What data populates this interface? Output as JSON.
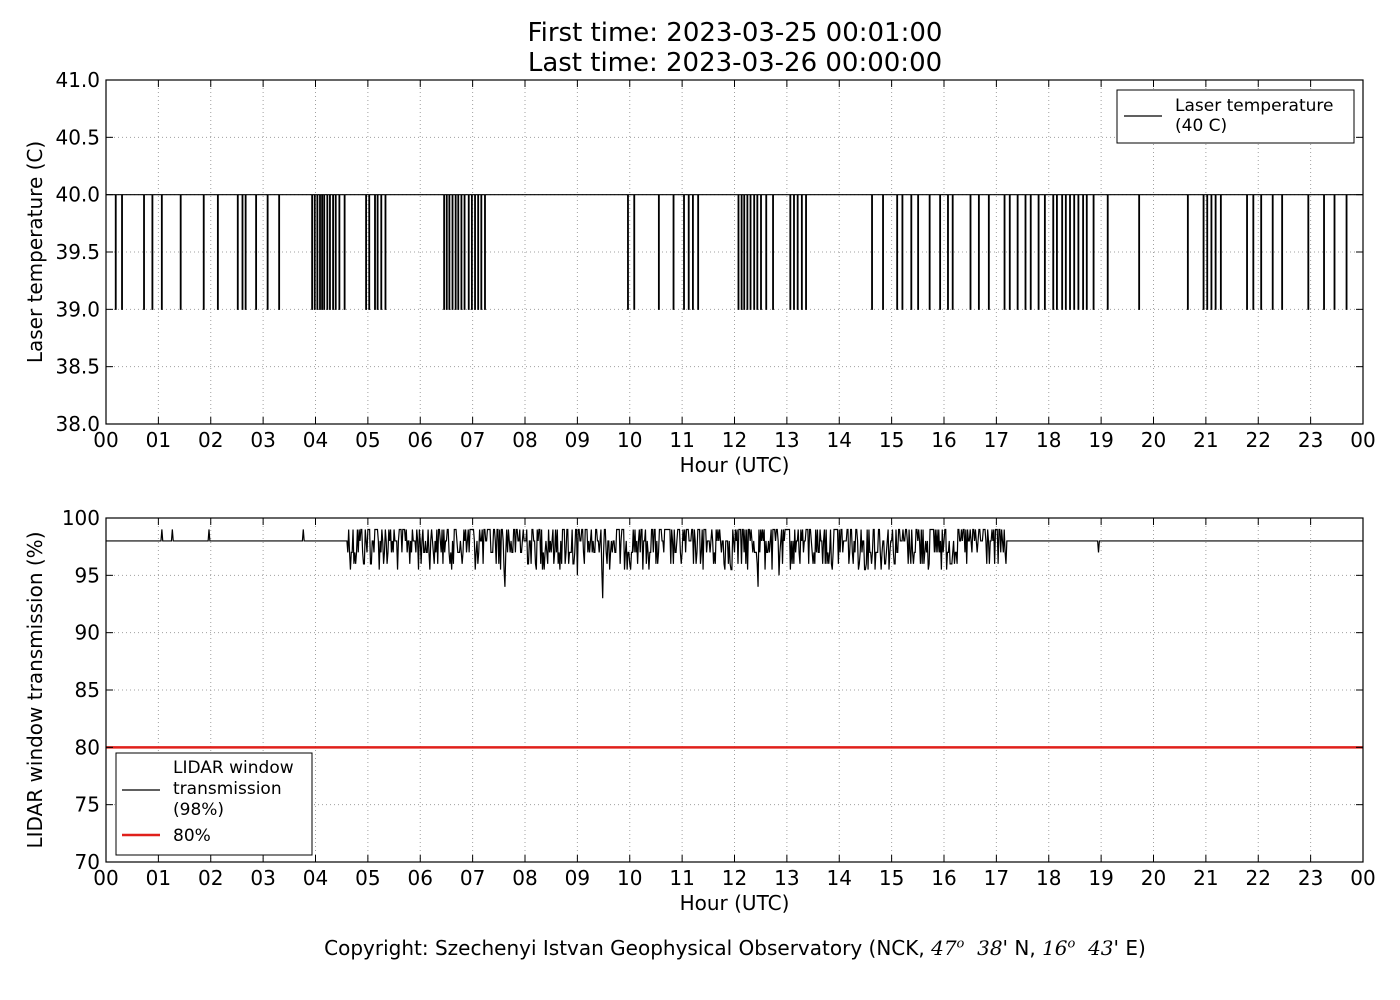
{
  "header": {
    "first_time": "First time: 2023-03-25 00:01:00",
    "last_time": "Last time: 2023-03-26 00:00:00"
  },
  "footer": {
    "prefix": "Copyright: Szechenyi Istvan Geophysical Observatory (NCK, ",
    "lat_deg": "47",
    "lat_min": "38",
    "lat_dir": "' N, ",
    "lon_deg": "16",
    "lon_min": "43",
    "lon_dir": "' E)"
  },
  "colors": {
    "line": "#000000",
    "threshold": "#e0201b",
    "grid": "#a0a0a0"
  },
  "chart_data": [
    {
      "type": "line",
      "xlabel": "Hour (UTC)",
      "ylabel": "Laser temperature (C)",
      "xlim": [
        0,
        24
      ],
      "ylim": [
        38.0,
        41.0
      ],
      "xticks": [
        "00",
        "01",
        "02",
        "03",
        "04",
        "05",
        "06",
        "07",
        "08",
        "09",
        "10",
        "11",
        "12",
        "13",
        "14",
        "15",
        "16",
        "17",
        "18",
        "19",
        "20",
        "21",
        "22",
        "23",
        "00"
      ],
      "yticks": [
        "38.0",
        "38.5",
        "39.0",
        "39.5",
        "40.0",
        "40.5",
        "41.0"
      ],
      "grid": true,
      "legend": {
        "placement": "top-right",
        "entries": [
          "Laser temperature\n(40 C)"
        ]
      },
      "series": [
        {
          "name": "Laser temperature\n(40 C)",
          "baseline": 40.0,
          "dip_value": 39.0,
          "dips_hours": [
            0.18,
            0.3,
            0.72,
            0.88,
            1.06,
            1.42,
            1.86,
            2.13,
            2.51,
            2.6,
            2.66,
            2.86,
            3.08,
            3.3,
            3.93,
            3.98,
            4.03,
            4.08,
            4.12,
            4.16,
            4.22,
            4.27,
            4.33,
            4.38,
            4.45,
            4.55,
            4.96,
            5.02,
            5.13,
            5.18,
            5.25,
            5.33,
            6.45,
            6.5,
            6.55,
            6.61,
            6.67,
            6.72,
            6.78,
            6.84,
            6.92,
            6.98,
            7.04,
            7.1,
            7.16,
            7.23,
            9.96,
            10.08,
            10.55,
            10.83,
            11.03,
            11.12,
            11.2,
            11.3,
            12.07,
            12.13,
            12.18,
            12.24,
            12.3,
            12.37,
            12.43,
            12.5,
            12.6,
            12.73,
            13.06,
            13.13,
            13.2,
            13.28,
            13.36,
            14.62,
            14.83,
            15.1,
            15.2,
            15.37,
            15.5,
            15.72,
            15.92,
            16.07,
            16.16,
            16.5,
            16.66,
            16.85,
            17.15,
            17.25,
            17.4,
            17.55,
            17.65,
            17.8,
            17.92,
            18.08,
            18.15,
            18.25,
            18.32,
            18.4,
            18.48,
            18.56,
            18.65,
            18.72,
            18.85,
            19.12,
            19.72,
            20.65,
            20.95,
            21.02,
            21.1,
            21.18,
            21.28,
            21.78,
            21.9,
            22.05,
            22.27,
            22.45,
            22.95,
            23.25,
            23.45,
            23.68
          ]
        }
      ]
    },
    {
      "type": "line",
      "xlabel": "Hour (UTC)",
      "ylabel": "LIDAR window transmission (%)",
      "xlim": [
        0,
        24
      ],
      "ylim": [
        70,
        100
      ],
      "xticks": [
        "00",
        "01",
        "02",
        "03",
        "04",
        "05",
        "06",
        "07",
        "08",
        "09",
        "10",
        "11",
        "12",
        "13",
        "14",
        "15",
        "16",
        "17",
        "18",
        "19",
        "20",
        "21",
        "22",
        "23",
        "00"
      ],
      "yticks": [
        "70",
        "75",
        "80",
        "85",
        "90",
        "95",
        "100"
      ],
      "grid": true,
      "legend": {
        "placement": "bottom-left",
        "entries": [
          "LIDAR window\ntransmission\n(98%)",
          "80%"
        ]
      },
      "series": [
        {
          "name": "LIDAR window\ntransmission\n(98%)",
          "baseline": 98,
          "noisy_start_hour": 4.6,
          "noisy_end_hour": 17.2,
          "spikes": [
            [
              1.07,
              99
            ],
            [
              1.27,
              99
            ],
            [
              1.97,
              99
            ],
            [
              3.77,
              99
            ],
            [
              7.62,
              94
            ],
            [
              9.0,
              95
            ],
            [
              9.48,
              93
            ],
            [
              12.45,
              94
            ],
            [
              12.85,
              95
            ],
            [
              15.05,
              96
            ],
            [
              18.95,
              97
            ]
          ]
        },
        {
          "name": "80%",
          "constant": 80
        }
      ]
    }
  ]
}
